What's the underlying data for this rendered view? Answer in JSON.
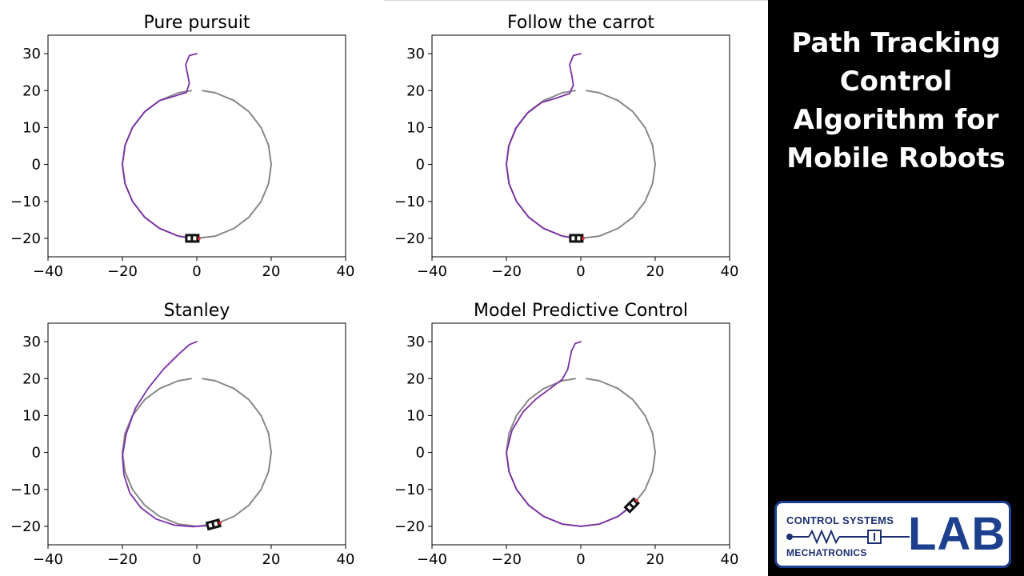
{
  "panel": {
    "title_lines": [
      "Path Tracking",
      "Control",
      "Algorithm for",
      "Mobile Robots"
    ],
    "background": "#000000",
    "text_color": "#ffffff"
  },
  "logo": {
    "top_text": "CONTROL SYSTEMS",
    "bottom_text": "MECHATRONICS",
    "big_text": "LAB",
    "border_color": "#1c3f8e",
    "text_color": "#1c2f70"
  },
  "colors": {
    "reference_path": "#888888",
    "robot_path": "#7b2fa8",
    "robot_body": "#111111",
    "robot_marker": "#e03030"
  },
  "chart_data": [
    {
      "type": "line",
      "title": "Pure pursuit",
      "xlim": [
        -40,
        40
      ],
      "ylim": [
        -25,
        35
      ],
      "xticks": [
        -40,
        -20,
        0,
        20,
        40
      ],
      "yticks": [
        -20,
        -10,
        0,
        10,
        20,
        30
      ],
      "grid": false,
      "series": [
        {
          "role": "reference",
          "x": [
            1.5,
            5,
            10,
            14,
            17.3,
            19.3,
            20,
            19.3,
            17.3,
            14,
            10,
            5,
            0,
            -5,
            -10,
            -14,
            -17.3,
            -19.3,
            -20,
            -19.3,
            -17.3,
            -14,
            -10,
            -5,
            -1.5
          ],
          "y": [
            20,
            19.4,
            17.3,
            14.3,
            10,
            5.2,
            0,
            -5.2,
            -10,
            -14.3,
            -17.3,
            -19.4,
            -20,
            -19.4,
            -17.3,
            -14.3,
            -10,
            -5.2,
            0,
            5.2,
            10,
            14.3,
            17.3,
            19.4,
            20
          ]
        },
        {
          "role": "robot",
          "x": [
            0,
            -2,
            -3,
            -2.5,
            -2,
            -2.8,
            -6,
            -10,
            -14,
            -17.3,
            -19.3,
            -20,
            -19.3,
            -17.3,
            -14,
            -10,
            -5,
            -2
          ],
          "y": [
            30,
            29.5,
            27,
            24.5,
            22,
            19.5,
            18.5,
            17.3,
            14.3,
            10,
            5.2,
            0,
            -5.2,
            -10,
            -14.3,
            -17.3,
            -19.4,
            -19.9
          ]
        }
      ],
      "robot_pose": {
        "x": -1.2,
        "y": -20,
        "heading_deg": 0
      }
    },
    {
      "type": "line",
      "title": "Follow the carrot",
      "xlim": [
        -40,
        40
      ],
      "ylim": [
        -25,
        35
      ],
      "xticks": [
        -40,
        -20,
        0,
        20,
        40
      ],
      "yticks": [
        -20,
        -10,
        0,
        10,
        20,
        30
      ],
      "grid": false,
      "series": [
        {
          "role": "reference",
          "x": [
            1.5,
            5,
            10,
            14,
            17.3,
            19.3,
            20,
            19.3,
            17.3,
            14,
            10,
            5,
            0,
            -5,
            -10,
            -14,
            -17.3,
            -19.3,
            -20,
            -19.3,
            -17.3,
            -14,
            -10,
            -5,
            -1.5
          ],
          "y": [
            20,
            19.4,
            17.3,
            14.3,
            10,
            5.2,
            0,
            -5.2,
            -10,
            -14.3,
            -17.3,
            -19.4,
            -20,
            -19.4,
            -17.3,
            -14.3,
            -10,
            -5.2,
            0,
            5.2,
            10,
            14.3,
            17.3,
            19.4,
            20
          ]
        },
        {
          "role": "robot",
          "x": [
            0,
            -2,
            -3,
            -2.5,
            -2,
            -3,
            -6.5,
            -10.5,
            -14.5,
            -17.5,
            -19.4,
            -20,
            -19.3,
            -17.3,
            -14,
            -10,
            -5,
            -2
          ],
          "y": [
            30,
            29.5,
            27,
            24.5,
            21.5,
            19.2,
            18,
            16.8,
            13.8,
            9.8,
            5,
            0,
            -5.2,
            -10,
            -14.3,
            -17.3,
            -19.4,
            -19.9
          ]
        }
      ],
      "robot_pose": {
        "x": -1.2,
        "y": -20,
        "heading_deg": 0
      }
    },
    {
      "type": "line",
      "title": "Stanley",
      "xlim": [
        -40,
        40
      ],
      "ylim": [
        -25,
        35
      ],
      "xticks": [
        -40,
        -20,
        0,
        20,
        40
      ],
      "yticks": [
        -20,
        -10,
        0,
        10,
        20,
        30
      ],
      "grid": false,
      "series": [
        {
          "role": "reference",
          "x": [
            1.5,
            5,
            10,
            14,
            17.3,
            19.3,
            20,
            19.3,
            17.3,
            14,
            10,
            5,
            0,
            -5,
            -10,
            -14,
            -17.3,
            -19.3,
            -20,
            -19.3,
            -17.3,
            -14,
            -10,
            -5,
            -1.5
          ],
          "y": [
            20,
            19.4,
            17.3,
            14.3,
            10,
            5.2,
            0,
            -5.2,
            -10,
            -14.3,
            -17.3,
            -19.4,
            -20,
            -19.4,
            -17.3,
            -14.3,
            -10,
            -5.2,
            0,
            5.2,
            10,
            14.3,
            17.3,
            19.4,
            20
          ]
        },
        {
          "role": "robot",
          "x": [
            0,
            -2,
            -5,
            -9,
            -13,
            -16.5,
            -19,
            -20,
            -19.6,
            -18,
            -15,
            -11,
            -6,
            -1,
            3,
            5
          ],
          "y": [
            30,
            29.2,
            26.5,
            22.5,
            17.5,
            12,
            5,
            -1,
            -6,
            -11,
            -15,
            -18,
            -19.7,
            -20.1,
            -19.8,
            -19.4
          ]
        }
      ],
      "robot_pose": {
        "x": 4.5,
        "y": -19.5,
        "heading_deg": 15
      }
    },
    {
      "type": "line",
      "title": "Model Predictive Control",
      "xlim": [
        -40,
        40
      ],
      "ylim": [
        -25,
        35
      ],
      "xticks": [
        -40,
        -20,
        0,
        20,
        40
      ],
      "yticks": [
        -20,
        -10,
        0,
        10,
        20,
        30
      ],
      "grid": false,
      "series": [
        {
          "role": "reference",
          "x": [
            1.5,
            5,
            10,
            14,
            17.3,
            19.3,
            20,
            19.3,
            17.3,
            14,
            10,
            5,
            0,
            -5,
            -10,
            -14,
            -17.3,
            -19.3,
            -20,
            -19.3,
            -17.3,
            -14,
            -10,
            -5,
            -1.5
          ],
          "y": [
            20,
            19.4,
            17.3,
            14.3,
            10,
            5.2,
            0,
            -5.2,
            -10,
            -14.3,
            -17.3,
            -19.4,
            -20,
            -19.4,
            -17.3,
            -14.3,
            -10,
            -5.2,
            0,
            5.2,
            10,
            14.3,
            17.3,
            19.4,
            20
          ]
        },
        {
          "role": "robot",
          "x": [
            0,
            -1.5,
            -2.5,
            -3,
            -3.5,
            -5,
            -8,
            -12,
            -15.5,
            -18.5,
            -20,
            -19.3,
            -17.3,
            -14,
            -10,
            -5,
            0,
            5,
            10,
            13.5
          ],
          "y": [
            30,
            29.5,
            27.5,
            25,
            22.5,
            19.8,
            17.5,
            14.5,
            11,
            6,
            0,
            -5.2,
            -10,
            -14.3,
            -17.3,
            -19.4,
            -20,
            -19.4,
            -17.3,
            -14.5
          ]
        }
      ],
      "robot_pose": {
        "x": 13.7,
        "y": -14.3,
        "heading_deg": 45
      }
    }
  ]
}
